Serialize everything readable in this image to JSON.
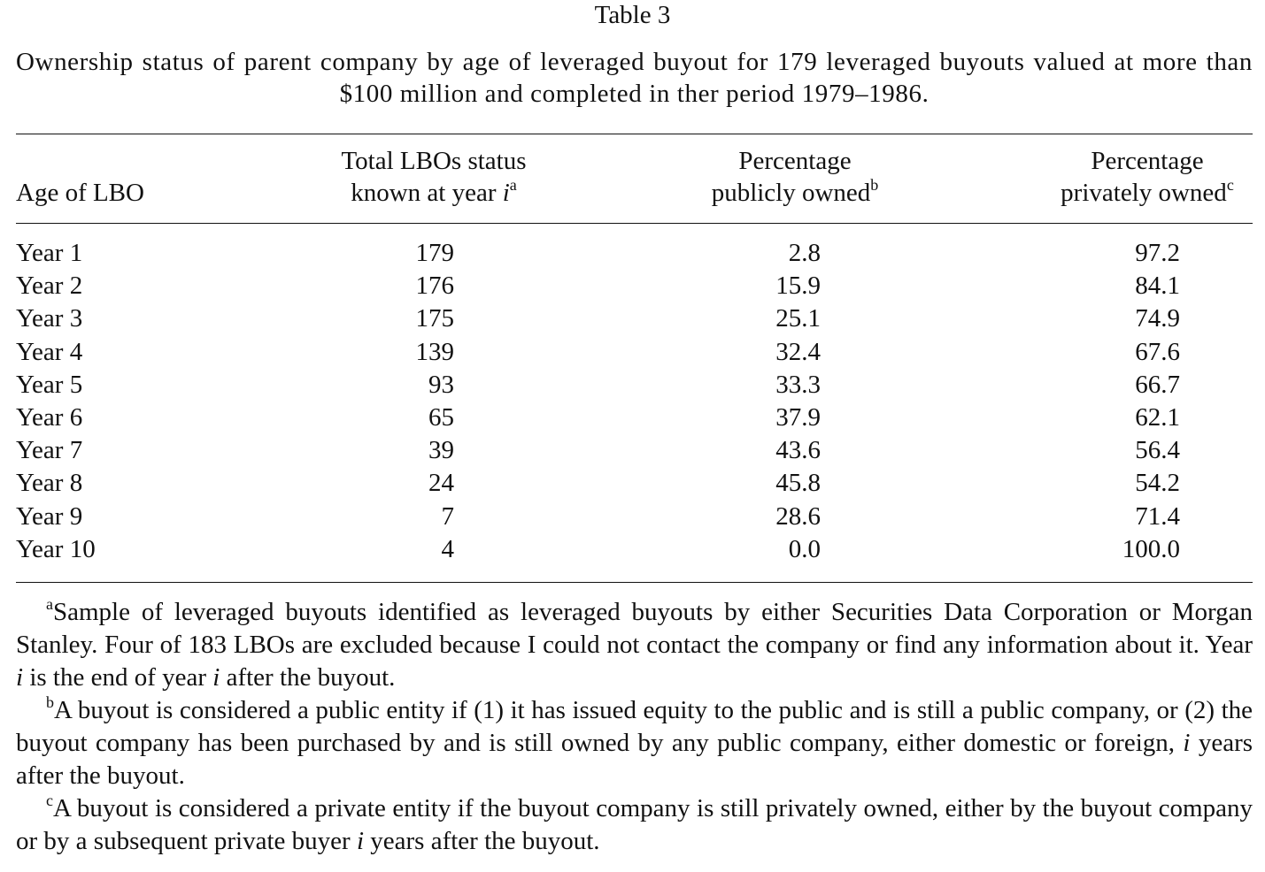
{
  "header": {
    "title": "Table 3",
    "caption": "Ownership status of parent company by age of leveraged buyout for 179 leveraged buyouts valued at more than $100 million and completed in ther period 1979–1986."
  },
  "table": {
    "columns": [
      {
        "lines": [
          "",
          "Age of LBO"
        ]
      },
      {
        "lines": [
          "Total LBOs status",
          "known at year "
        ],
        "italic": "i",
        "sup": "a"
      },
      {
        "lines": [
          "Percentage",
          "publicly owned"
        ],
        "sup": "b"
      },
      {
        "lines": [
          "Percentage",
          "privately owned"
        ],
        "sup": "c"
      }
    ],
    "rows": [
      [
        "Year 1",
        "179",
        "2.8",
        "97.2"
      ],
      [
        "Year 2",
        "176",
        "15.9",
        "84.1"
      ],
      [
        "Year 3",
        "175",
        "25.1",
        "74.9"
      ],
      [
        "Year 4",
        "139",
        "32.4",
        "67.6"
      ],
      [
        "Year 5",
        "93",
        "33.3",
        "66.7"
      ],
      [
        "Year 6",
        "65",
        "37.9",
        "62.1"
      ],
      [
        "Year 7",
        "39",
        "43.6",
        "56.4"
      ],
      [
        "Year 8",
        "24",
        "45.8",
        "54.2"
      ],
      [
        "Year 9",
        "7",
        "28.6",
        "71.4"
      ],
      [
        "Year 10",
        "4",
        "0.0",
        "100.0"
      ]
    ]
  },
  "footnotes": [
    {
      "marker": "a",
      "segments": [
        "Sample of leveraged buyouts identified as leveraged buyouts by either Securities Data Corporation or Morgan Stanley. Four of 183 LBOs are excluded because I could not contact the company or find any information about it. Year ",
        "i",
        " is the end of year ",
        "i",
        " after the buyout."
      ]
    },
    {
      "marker": "b",
      "segments": [
        "A buyout is considered a public entity if (1) it has issued equity to the public and is still a public company, or (2) the buyout company has been purchased by and is still owned by any public company, either domestic or foreign, ",
        "i",
        " years after the buyout."
      ]
    },
    {
      "marker": "c",
      "segments": [
        "A buyout is considered a private entity if the buyout company is still privately owned, either by the buyout company or by a subsequent private buyer ",
        "i",
        " years after the buyout."
      ]
    }
  ]
}
